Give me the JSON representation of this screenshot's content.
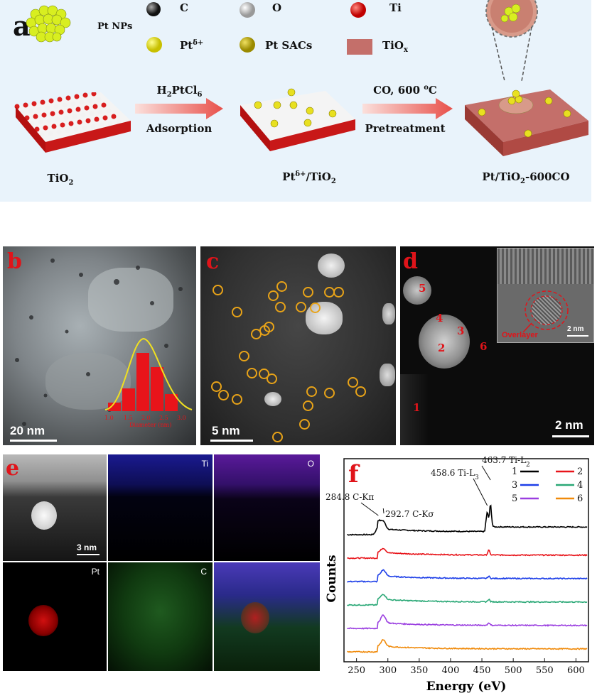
{
  "panels": {
    "a": {
      "letter": "a",
      "legend": {
        "pt_nps": "Pt NPs",
        "c": "C",
        "o": "O",
        "ti": "Ti",
        "pt_delta": "Pt",
        "pt_delta_sup": "δ+",
        "pt_sacs": "Pt SACs",
        "tiox": "TiO",
        "tiox_sub": "x"
      },
      "step1": {
        "top_main": "H",
        "top_sub1": "2",
        "top_mid": "PtCl",
        "top_sub2": "6",
        "bottom": "Adsorption"
      },
      "step2": {
        "top": "CO, 600 ",
        "top_sup": "o",
        "top_end": "C",
        "bottom": "Pretreatment"
      },
      "labels": {
        "l1_main": "TiO",
        "l1_sub": "2",
        "l2_main": "Pt",
        "l2_sup": "δ+",
        "l2_mid": "/TiO",
        "l2_sub": "2",
        "l3_main": "Pt/TiO",
        "l3_sub": "2",
        "l3_end": "-600CO"
      },
      "colors": {
        "ti": "#d81e1e",
        "o": "#f2f2f2",
        "pt": "#e0e020",
        "arrow": "#e8504a"
      }
    },
    "b": {
      "letter": "b",
      "scale": "20 nm",
      "hist_ticks": [
        "1.0",
        "1.5",
        "2.0",
        "2.5",
        "3.0"
      ],
      "hist_xlabel": "Diameter (nm)"
    },
    "c": {
      "letter": "c",
      "scale": "5 nm"
    },
    "d": {
      "letter": "d",
      "scale": "2 nm",
      "inset_scale": "2 nm",
      "overlayer": "Overlayer",
      "nums": [
        "1",
        "2",
        "3",
        "4",
        "5",
        "6"
      ]
    },
    "e": {
      "letter": "e",
      "scale": "3 nm",
      "maps": [
        "Ti",
        "O",
        "Pt",
        "C"
      ]
    },
    "f": {
      "letter": "f"
    }
  },
  "chart_data": {
    "type": "line",
    "xlabel": "Energy (eV)",
    "ylabel": "Counts",
    "xlim": [
      230,
      620
    ],
    "xticks": [
      250,
      300,
      350,
      400,
      450,
      500,
      550,
      600
    ],
    "legend": [
      "1",
      "2",
      "3",
      "4",
      "5",
      "6"
    ],
    "legend_placement": "top-right",
    "series": [
      {
        "name": "1",
        "color": "#000000",
        "offset": 5,
        "features": [
          {
            "x": 284.8,
            "h": 0.9
          },
          {
            "x": 292.7,
            "h": 0.9
          },
          {
            "x": 458.6,
            "h": 1.7
          },
          {
            "x": 463.7,
            "h": 2.6
          }
        ]
      },
      {
        "name": "2",
        "color": "#e8141a",
        "offset": 4,
        "features": [
          {
            "x": 292.7,
            "h": 0.5
          },
          {
            "x": 461,
            "h": 0.55
          }
        ]
      },
      {
        "name": "3",
        "color": "#1c3ee8",
        "offset": 3,
        "features": [
          {
            "x": 292.7,
            "h": 0.7
          },
          {
            "x": 461,
            "h": 0.25
          }
        ]
      },
      {
        "name": "4",
        "color": "#2aa876",
        "offset": 2,
        "features": [
          {
            "x": 292.7,
            "h": 0.6
          },
          {
            "x": 461,
            "h": 0.3
          }
        ]
      },
      {
        "name": "5",
        "color": "#9a3ee0",
        "offset": 1,
        "features": [
          {
            "x": 292.7,
            "h": 0.9
          },
          {
            "x": 461,
            "h": 0.3
          }
        ]
      },
      {
        "name": "6",
        "color": "#f08a0a",
        "offset": 0,
        "features": [
          {
            "x": 292.7,
            "h": 0.75
          }
        ]
      }
    ],
    "annotations": [
      {
        "text": "284.8 C-Kπ",
        "x": 284.8
      },
      {
        "text": "292.7 C-Kσ",
        "x": 292.7
      },
      {
        "text": "458.6 Ti-L",
        "sub": "3",
        "x": 458.6
      },
      {
        "text": "463.7 Ti-L",
        "sub": "2",
        "x": 463.7
      }
    ]
  }
}
